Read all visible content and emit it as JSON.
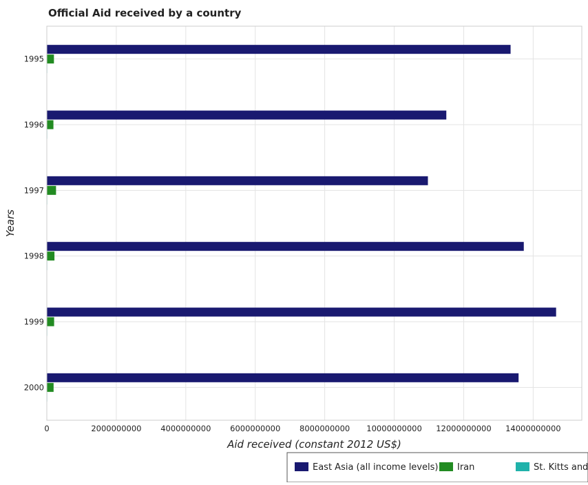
{
  "chart_data": {
    "type": "bar",
    "orientation": "horizontal",
    "title": "Official Aid received by a country",
    "xlabel": "Aid received (constant 2012 US$)",
    "ylabel": "Years",
    "categories": [
      "1995",
      "1996",
      "1997",
      "1998",
      "1999",
      "2000"
    ],
    "series": [
      {
        "name": "East Asia (all income levels)",
        "color": "#191970",
        "values": [
          13350000000,
          11500000000,
          10970000000,
          13730000000,
          14660000000,
          13580000000
        ]
      },
      {
        "name": "Iran",
        "color": "#228B22",
        "values": [
          205000000,
          190000000,
          265000000,
          220000000,
          210000000,
          195000000
        ]
      },
      {
        "name": "St. Kitts and Nevis",
        "color": "#20B2AA",
        "values": [
          6000000,
          8000000,
          12000000,
          9000000,
          6000000,
          5000000
        ]
      }
    ],
    "xlim": [
      0,
      15400000000
    ],
    "xticks": [
      0,
      2000000000,
      4000000000,
      6000000000,
      8000000000,
      10000000000,
      12000000000,
      14000000000
    ],
    "xtick_labels": [
      "0",
      "2000000000",
      "4000000000",
      "6000000000",
      "8000000000",
      "10000000000",
      "12000000000",
      "14000000000"
    ],
    "grid": true,
    "legend_position": "bottom-right"
  }
}
